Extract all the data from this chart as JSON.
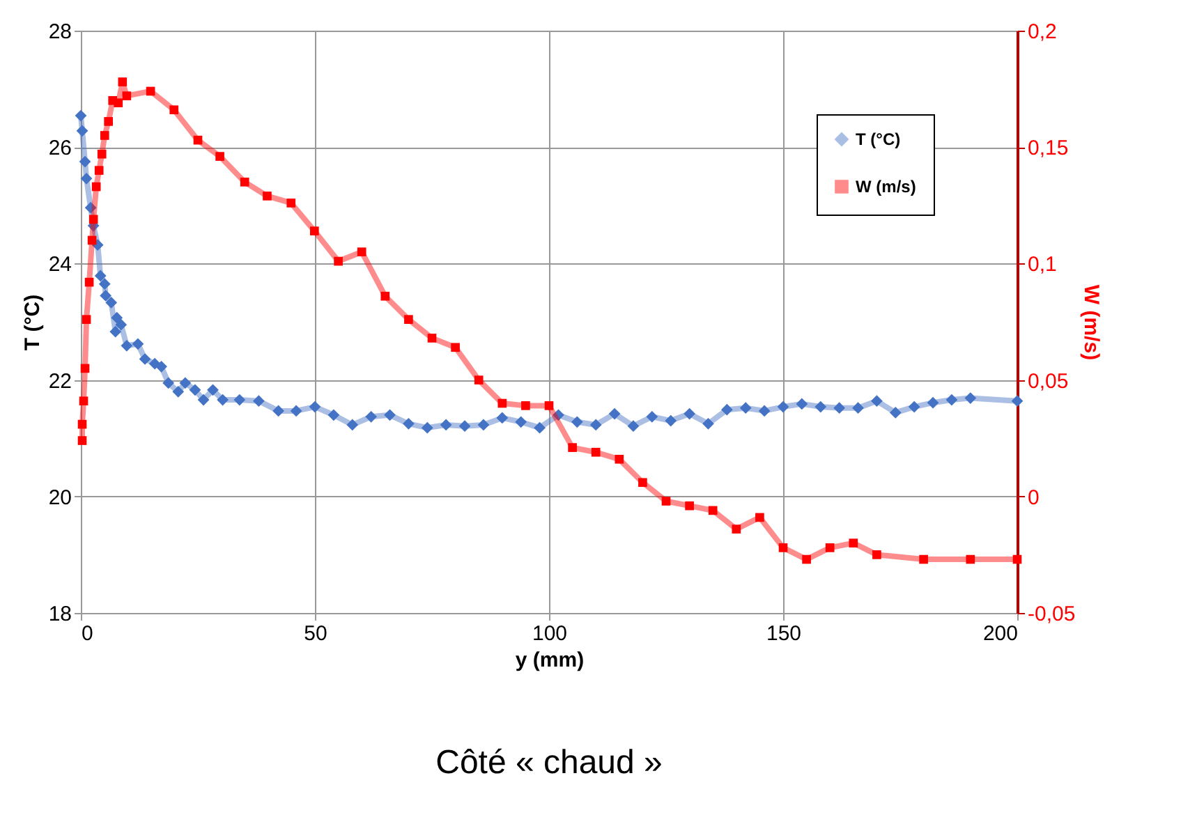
{
  "chart_data": {
    "type": "line",
    "xlabel": "y (mm)",
    "ylabel": "T (°C)",
    "y2label": "W (m/s)",
    "annotations": [
      "Côté « chaud »"
    ],
    "xlim": [
      0,
      200
    ],
    "xticks": [
      0,
      50,
      100,
      150,
      200
    ],
    "ylim": [
      18,
      28
    ],
    "yticks": [
      18,
      20,
      22,
      24,
      26,
      28
    ],
    "y2lim": [
      -0.05,
      0.2
    ],
    "y2ticks": [
      {
        "value": -0.05,
        "label": "-0,05"
      },
      {
        "value": 0,
        "label": "0"
      },
      {
        "value": 0.05,
        "label": "0,05"
      },
      {
        "value": 0.1,
        "label": "0,1"
      },
      {
        "value": 0.15,
        "label": "0,15"
      },
      {
        "value": 0.2,
        "label": "0,2"
      }
    ],
    "grid": true,
    "legend": "top right",
    "series": [
      {
        "name": "T (°C)",
        "color": "#4472c4",
        "marker": "diamond",
        "x": [
          0,
          0.3,
          0.9,
          1.2,
          2.1,
          2.7,
          3.6,
          4.2,
          5.1,
          5.3,
          6.5,
          7.4,
          7.7,
          8.6,
          9.8,
          12.2,
          13.7,
          15.8,
          17.2,
          18.7,
          20.8,
          22.3,
          24.4,
          26.2,
          28.2,
          30.3,
          33.9,
          38,
          42.2,
          46,
          50,
          54,
          58,
          62,
          66,
          70,
          74,
          78,
          82,
          86,
          90,
          94,
          98,
          102,
          106,
          110,
          114,
          118,
          122,
          126,
          130,
          134,
          138,
          142,
          146,
          150,
          154,
          158,
          162,
          166,
          170,
          174,
          178,
          182,
          186,
          190,
          200
        ],
        "values": [
          26.54,
          26.28,
          25.75,
          25.46,
          24.96,
          24.65,
          24.32,
          23.79,
          23.65,
          23.45,
          23.33,
          22.83,
          23.07,
          22.95,
          22.59,
          22.62,
          22.36,
          22.28,
          22.23,
          21.95,
          21.8,
          21.95,
          21.83,
          21.66,
          21.83,
          21.66,
          21.66,
          21.64,
          21.47,
          21.47,
          21.54,
          21.4,
          21.23,
          21.37,
          21.4,
          21.25,
          21.18,
          21.23,
          21.21,
          21.23,
          21.35,
          21.28,
          21.18,
          21.4,
          21.28,
          21.23,
          21.42,
          21.21,
          21.37,
          21.3,
          21.42,
          21.25,
          21.49,
          21.52,
          21.47,
          21.54,
          21.59,
          21.54,
          21.52,
          21.52,
          21.64,
          21.44,
          21.54,
          21.61,
          21.66,
          21.69,
          21.64
        ]
      },
      {
        "name": "W (m/s)",
        "color": "#ff0000",
        "marker": "square",
        "axis": "y2",
        "x": [
          0.3,
          0.3,
          0.6,
          0.9,
          1.2,
          1.8,
          2.4,
          2.7,
          3.3,
          3.9,
          4.5,
          5.1,
          5.9,
          6.8,
          8,
          8.9,
          9.8,
          14.9,
          19.9,
          25,
          29.7,
          35,
          39.8,
          44.9,
          49.9,
          55,
          60,
          65,
          70,
          75,
          80,
          85,
          90,
          95,
          100,
          105,
          110,
          115,
          120,
          125,
          130,
          135,
          140,
          145,
          150,
          155,
          160,
          165,
          170,
          180,
          190,
          200
        ],
        "values": [
          0.024,
          0.031,
          0.041,
          0.055,
          0.076,
          0.092,
          0.11,
          0.119,
          0.133,
          0.14,
          0.147,
          0.155,
          0.161,
          0.17,
          0.169,
          0.178,
          0.172,
          0.174,
          0.166,
          0.153,
          0.146,
          0.135,
          0.129,
          0.126,
          0.114,
          0.101,
          0.105,
          0.086,
          0.076,
          0.068,
          0.064,
          0.05,
          0.04,
          0.039,
          0.039,
          0.021,
          0.019,
          0.016,
          0.006,
          -0.002,
          -0.004,
          -0.006,
          -0.014,
          -0.009,
          -0.022,
          -0.027,
          -0.022,
          -0.02,
          -0.025,
          -0.027,
          -0.027,
          -0.027
        ]
      }
    ]
  }
}
